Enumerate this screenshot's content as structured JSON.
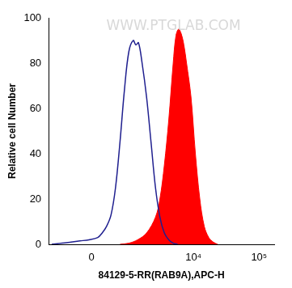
{
  "chart_data": {
    "type": "line",
    "annotations": [
      "WWW.PTGLAB.COM"
    ],
    "x_label": "84129-5-RR(RAB9A),APC-H",
    "y_label": "Relative cell Number",
    "xlim": [
      -1200,
      170000
    ],
    "xticks": [
      0,
      {
        "value": 10000,
        "label": "10⁴"
      },
      {
        "value": 100000,
        "label": "10⁵"
      }
    ],
    "ylim": [
      0,
      100
    ],
    "yticks": [
      0,
      20,
      40,
      60,
      80,
      100
    ],
    "grid": false,
    "series": [
      {
        "type": "line",
        "color": "#1f1f8f",
        "x": [
          -1063,
          -683,
          -437,
          -233,
          -52,
          123,
          214,
          311,
          414,
          529,
          656,
          799,
          960,
          1144,
          1267,
          1399,
          1603,
          1891,
          2225,
          2611,
          3058,
          3582,
          4190,
          4899,
          5720
        ],
        "values": [
          0,
          0.5,
          1,
          1.5,
          2,
          3,
          5,
          8,
          13,
          25,
          45,
          68,
          85,
          90,
          88,
          89,
          80,
          65,
          45,
          25,
          12,
          5,
          2,
          0.5,
          0
        ]
      },
      {
        "type": "area",
        "color": "#ff0000",
        "x": [
          656,
          960,
          1354,
          1891,
          2611,
          3058,
          3582,
          4190,
          4899,
          5390,
          5920,
          6500,
          7140,
          7840,
          9170,
          10700,
          12500,
          14600,
          17100,
          20000,
          23400
        ],
        "values": [
          0,
          0.5,
          2,
          5,
          12,
          20,
          35,
          55,
          80,
          92,
          95,
          93,
          88,
          80,
          65,
          40,
          20,
          8,
          3,
          1,
          0
        ]
      }
    ]
  }
}
